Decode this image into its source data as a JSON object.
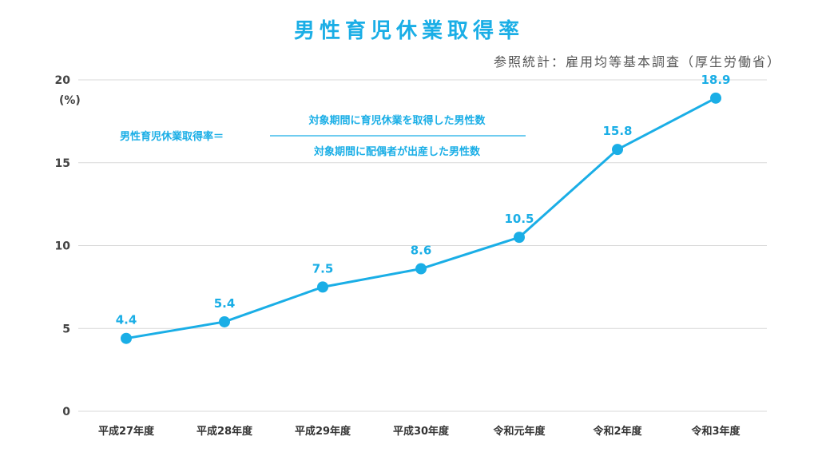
{
  "title": "男性育児休業取得率",
  "source": "参照統計：雇用均等基本調査（厚生労働省）",
  "formula": {
    "lhs": "男性育児休業取得率＝",
    "numerator": "対象期間に育児休業を取得した男性数",
    "denominator": "対象期間に配偶者が出産した男性数"
  },
  "colors": {
    "line": "#1aaee6",
    "grid": "#d9d9d9",
    "text": "#333333"
  },
  "chart_data": {
    "type": "line",
    "title": "男性育児休業取得率",
    "xlabel": "",
    "ylabel": "(%)",
    "categories": [
      "平成27年度",
      "平成28年度",
      "平成29年度",
      "平成30年度",
      "令和元年度",
      "令和2年度",
      "令和3年度"
    ],
    "values": [
      4.4,
      5.4,
      7.5,
      8.6,
      10.5,
      15.8,
      18.9
    ],
    "value_labels": [
      "4.4",
      "5.4",
      "7.5",
      "8.6",
      "10.5",
      "15.8",
      "18.9"
    ],
    "ylim": [
      0,
      20
    ],
    "yticks": [
      0,
      5,
      10,
      15,
      20
    ],
    "ytick_labels": [
      "0",
      "5",
      "10",
      "15",
      "20"
    ],
    "grid": true
  }
}
